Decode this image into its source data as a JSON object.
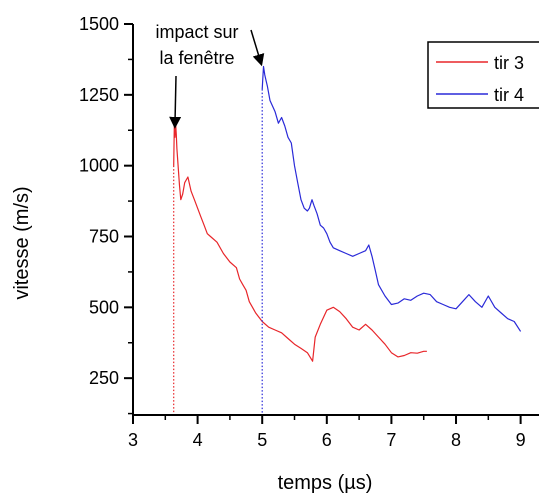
{
  "chart_data": {
    "type": "line",
    "xlabel": "temps (µs)",
    "ylabel": "vitesse (m/s)",
    "xlim": [
      3,
      9.3
    ],
    "ylim": [
      120,
      1500
    ],
    "x_ticks": [
      3,
      4,
      5,
      6,
      7,
      8,
      9
    ],
    "y_ticks": [
      250,
      500,
      750,
      1000,
      1250,
      1500
    ],
    "legend_position": "top-right",
    "annotation": {
      "lines": [
        "impact sur",
        "la fenêtre"
      ],
      "points_to": [
        [
          3.65,
          1130
        ],
        [
          5.0,
          1350
        ]
      ]
    },
    "impact_markers": [
      {
        "series": "tir 3",
        "x": 3.63
      },
      {
        "series": "tir 4",
        "x": 5.0
      }
    ],
    "series": [
      {
        "name": "tir 3",
        "color": "#e8262a",
        "points": [
          [
            3.63,
            1000
          ],
          [
            3.64,
            1140
          ],
          [
            3.65,
            1100
          ],
          [
            3.66,
            1150
          ],
          [
            3.67,
            1110
          ],
          [
            3.68,
            1060
          ],
          [
            3.72,
            930
          ],
          [
            3.74,
            880
          ],
          [
            3.77,
            900
          ],
          [
            3.8,
            940
          ],
          [
            3.85,
            960
          ],
          [
            3.9,
            910
          ],
          [
            3.95,
            880
          ],
          [
            4.0,
            850
          ],
          [
            4.05,
            820
          ],
          [
            4.1,
            790
          ],
          [
            4.15,
            760
          ],
          [
            4.2,
            750
          ],
          [
            4.3,
            730
          ],
          [
            4.4,
            690
          ],
          [
            4.5,
            660
          ],
          [
            4.6,
            640
          ],
          [
            4.65,
            600
          ],
          [
            4.7,
            580
          ],
          [
            4.75,
            560
          ],
          [
            4.8,
            520
          ],
          [
            4.85,
            500
          ],
          [
            4.9,
            480
          ],
          [
            5.0,
            450
          ],
          [
            5.1,
            430
          ],
          [
            5.2,
            420
          ],
          [
            5.3,
            410
          ],
          [
            5.4,
            390
          ],
          [
            5.5,
            370
          ],
          [
            5.6,
            355
          ],
          [
            5.7,
            340
          ],
          [
            5.78,
            310
          ],
          [
            5.82,
            395
          ],
          [
            5.9,
            440
          ],
          [
            6.0,
            490
          ],
          [
            6.1,
            500
          ],
          [
            6.2,
            485
          ],
          [
            6.3,
            460
          ],
          [
            6.4,
            430
          ],
          [
            6.5,
            420
          ],
          [
            6.6,
            440
          ],
          [
            6.7,
            420
          ],
          [
            6.8,
            395
          ],
          [
            6.9,
            370
          ],
          [
            7.0,
            340
          ],
          [
            7.1,
            325
          ],
          [
            7.2,
            330
          ],
          [
            7.3,
            340
          ],
          [
            7.4,
            338
          ],
          [
            7.5,
            345
          ],
          [
            7.55,
            345
          ]
        ]
      },
      {
        "name": "tir 4",
        "color": "#2a2ad8",
        "points": [
          [
            5.0,
            1270
          ],
          [
            5.02,
            1350
          ],
          [
            5.04,
            1320
          ],
          [
            5.06,
            1300
          ],
          [
            5.08,
            1280
          ],
          [
            5.12,
            1230
          ],
          [
            5.2,
            1190
          ],
          [
            5.25,
            1150
          ],
          [
            5.3,
            1170
          ],
          [
            5.35,
            1140
          ],
          [
            5.4,
            1100
          ],
          [
            5.45,
            1080
          ],
          [
            5.5,
            1000
          ],
          [
            5.55,
            940
          ],
          [
            5.6,
            880
          ],
          [
            5.65,
            850
          ],
          [
            5.7,
            840
          ],
          [
            5.73,
            850
          ],
          [
            5.77,
            880
          ],
          [
            5.8,
            860
          ],
          [
            5.85,
            830
          ],
          [
            5.9,
            790
          ],
          [
            5.95,
            780
          ],
          [
            6.0,
            760
          ],
          [
            6.05,
            730
          ],
          [
            6.1,
            710
          ],
          [
            6.2,
            700
          ],
          [
            6.3,
            690
          ],
          [
            6.4,
            680
          ],
          [
            6.5,
            690
          ],
          [
            6.6,
            700
          ],
          [
            6.65,
            720
          ],
          [
            6.7,
            680
          ],
          [
            6.75,
            630
          ],
          [
            6.8,
            580
          ],
          [
            6.9,
            540
          ],
          [
            7.0,
            510
          ],
          [
            7.1,
            515
          ],
          [
            7.2,
            530
          ],
          [
            7.3,
            525
          ],
          [
            7.4,
            540
          ],
          [
            7.5,
            550
          ],
          [
            7.6,
            545
          ],
          [
            7.7,
            520
          ],
          [
            7.8,
            510
          ],
          [
            7.9,
            500
          ],
          [
            8.0,
            495
          ],
          [
            8.1,
            520
          ],
          [
            8.2,
            545
          ],
          [
            8.3,
            520
          ],
          [
            8.4,
            500
          ],
          [
            8.5,
            540
          ],
          [
            8.6,
            500
          ],
          [
            8.7,
            480
          ],
          [
            8.8,
            460
          ],
          [
            8.9,
            450
          ],
          [
            9.0,
            415
          ]
        ]
      }
    ]
  }
}
